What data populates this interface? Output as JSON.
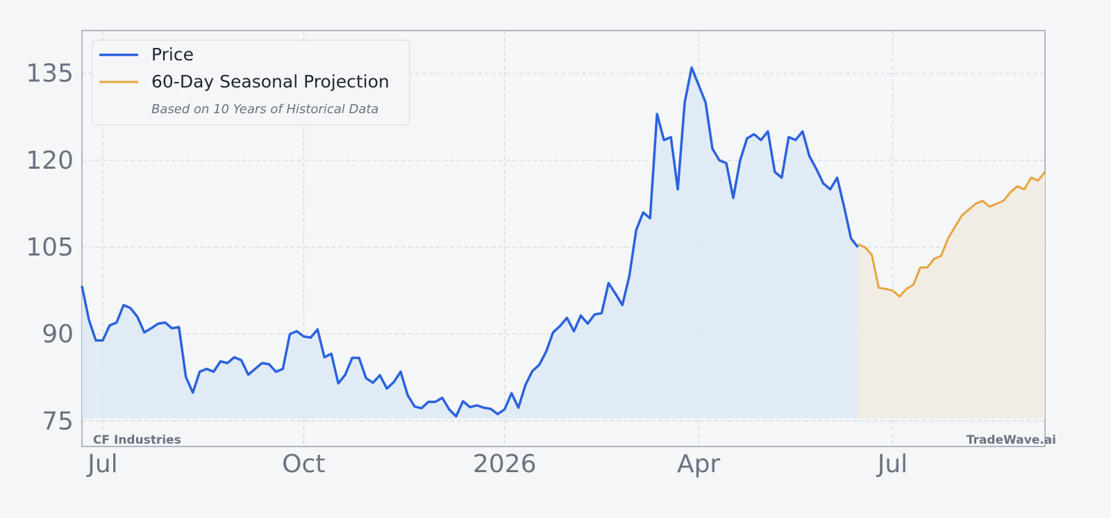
{
  "chart_data": {
    "type": "line",
    "categories": [
      null,
      null,
      null,
      "Jul",
      null,
      null,
      null,
      null,
      null,
      null,
      null,
      null,
      null,
      null,
      null,
      null,
      null,
      null,
      null,
      null,
      null,
      null,
      null,
      null,
      null,
      null,
      null,
      null,
      null,
      null,
      null,
      null,
      "Oct",
      null,
      null,
      null,
      null,
      null,
      null,
      null,
      null,
      null,
      null,
      null,
      null,
      null,
      null,
      null,
      null,
      null,
      null,
      null,
      null,
      null,
      null,
      null,
      null,
      null,
      null,
      null,
      null,
      "2026",
      null,
      null,
      null,
      null,
      null,
      null,
      null,
      null,
      null,
      null,
      null,
      null,
      null,
      null,
      null,
      null,
      null,
      null,
      null,
      null,
      null,
      null,
      null,
      null,
      null,
      null,
      null,
      "Apr",
      null,
      null,
      null,
      null,
      null,
      null,
      null,
      null,
      null,
      null,
      null,
      null,
      null,
      null,
      null,
      null,
      null,
      null,
      null,
      null,
      null,
      null,
      null,
      null,
      null,
      null,
      null,
      "Jul",
      null,
      null,
      null,
      null,
      null,
      null,
      null,
      null,
      null,
      null,
      null,
      null,
      null,
      null,
      null,
      null,
      null,
      null,
      null,
      null,
      null,
      null
    ],
    "series": [
      {
        "name": "Price",
        "color": "#2a62dd",
        "fill": "#dde9f6",
        "values": [
          98.3,
          92.5,
          88.9,
          88.9,
          91.5,
          92,
          95,
          94.5,
          93,
          90.3,
          91,
          91.8,
          92,
          91,
          91.2,
          82.6,
          79.9,
          83.5,
          84,
          83.5,
          85.3,
          85,
          86,
          85.5,
          83,
          84,
          85,
          84.8,
          83.5,
          84,
          90,
          90.5,
          89.6,
          89.4,
          90.8,
          86,
          86.6,
          81.5,
          83,
          85.9,
          85.9,
          82.4,
          81.6,
          82.9,
          80.6,
          81.7,
          83.5,
          79.5,
          77.5,
          77.2,
          78.3,
          78.3,
          79,
          77,
          75.8,
          78.4,
          77.4,
          77.7,
          77.3,
          77.1,
          76.2,
          77,
          79.8,
          77.3,
          81.2,
          83.6,
          84.7,
          87,
          90.3,
          91.4,
          92.8,
          90.5,
          93.2,
          91.8,
          93.4,
          93.6,
          98.8,
          97,
          95,
          100,
          108,
          111,
          110,
          128,
          123.5,
          124,
          115,
          130,
          136,
          133,
          130,
          122,
          120,
          119.5,
          113.5,
          120,
          123.8,
          124.5,
          123.5,
          125,
          118,
          117,
          124,
          123.5,
          125,
          120.7,
          118.5,
          116,
          115,
          117,
          112,
          106.5,
          105,
          null,
          null,
          null,
          null,
          null,
          null,
          null,
          null,
          null,
          null,
          null,
          null,
          null,
          null,
          null,
          null,
          null,
          null,
          null,
          null,
          null,
          null,
          null,
          null,
          null,
          null,
          null
        ]
      },
      {
        "name": "60-Day Seasonal Projection",
        "color": "#e8a33d",
        "fill": "#f1ebe0",
        "values": [
          null,
          null,
          null,
          null,
          null,
          null,
          null,
          null,
          null,
          null,
          null,
          null,
          null,
          null,
          null,
          null,
          null,
          null,
          null,
          null,
          null,
          null,
          null,
          null,
          null,
          null,
          null,
          null,
          null,
          null,
          null,
          null,
          null,
          null,
          null,
          null,
          null,
          null,
          null,
          null,
          null,
          null,
          null,
          null,
          null,
          null,
          null,
          null,
          null,
          null,
          null,
          null,
          null,
          null,
          null,
          null,
          null,
          null,
          null,
          null,
          null,
          null,
          null,
          null,
          null,
          null,
          null,
          null,
          null,
          null,
          null,
          null,
          null,
          null,
          null,
          null,
          null,
          null,
          null,
          null,
          null,
          null,
          null,
          null,
          null,
          null,
          null,
          null,
          null,
          null,
          null,
          null,
          null,
          null,
          null,
          null,
          null,
          null,
          null,
          null,
          null,
          null,
          null,
          null,
          null,
          null,
          null,
          null,
          null,
          null,
          null,
          null,
          105.5,
          105,
          103.7,
          98,
          97.8,
          97.5,
          96.5,
          97.8,
          98.5,
          101.5,
          101.5,
          103,
          103.5,
          106.5,
          108.5,
          110.5,
          111.5,
          112.5,
          113,
          112,
          112.5,
          113,
          114.5,
          115.5,
          115,
          117,
          116.5,
          118
        ]
      }
    ],
    "ylim": [
      70.6,
      142.4
    ],
    "yticks": [
      75,
      90,
      105,
      120,
      135
    ],
    "grid": true,
    "legend": "upper left",
    "legend_subtitle": "Based on 10 Years of Historical Data",
    "annotations": [
      "CF Industries",
      "TradeWave.ai"
    ]
  }
}
